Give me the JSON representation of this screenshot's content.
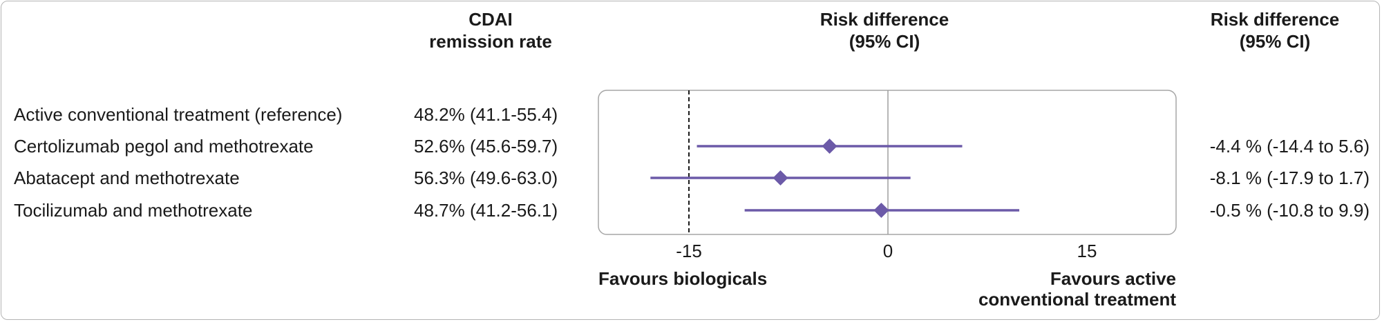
{
  "headers": {
    "cdai_line1": "CDAI",
    "cdai_line2": "remission rate",
    "rd_line1": "Risk difference",
    "rd_line2": "(95% CI)",
    "rd_right_line1": "Risk difference",
    "rd_right_line2": "(95% CI)"
  },
  "rows": [
    {
      "label": "Active conventional treatment (reference)",
      "rate": "48.2% (41.1-55.4)",
      "rd_text": ""
    },
    {
      "label": "Certolizumab pegol and methotrexate",
      "rate": "52.6% (45.6-59.7)",
      "rd_text": "-4.4 % (-14.4 to 5.6)"
    },
    {
      "label": "Abatacept and methotrexate",
      "rate": "56.3% (49.6-63.0)",
      "rd_text": "-8.1 % (-17.9 to 1.7)"
    },
    {
      "label": "Tocilizumab and methotrexate",
      "rate": "48.7% (41.2-56.1)",
      "rd_text": "-0.5 % (-10.8 to 9.9)"
    }
  ],
  "favours": {
    "left": "Favours biologicals",
    "right_line1": "Favours active",
    "right_line2": "conventional treatment"
  },
  "chart_data": {
    "type": "forest",
    "xlim": [
      -25,
      15
    ],
    "xticks": [
      -15,
      0,
      15
    ],
    "reference_line": 0,
    "dashed_line": -15,
    "marker_color": "#6c5aa8",
    "rows": [
      {
        "estimate": null,
        "lower": null,
        "upper": null
      },
      {
        "estimate": -4.4,
        "lower": -14.4,
        "upper": 5.6
      },
      {
        "estimate": -8.1,
        "lower": -17.9,
        "upper": 1.7
      },
      {
        "estimate": -0.5,
        "lower": -10.8,
        "upper": 9.9
      }
    ]
  }
}
